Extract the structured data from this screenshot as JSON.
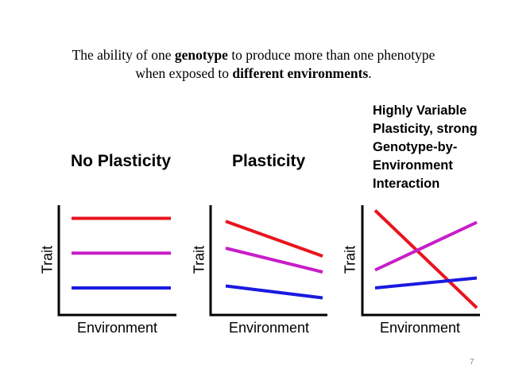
{
  "definition": {
    "line1_a": "The ability of one ",
    "line1_b": "genotype",
    "line1_c": " to produce more than one phenotype",
    "line2_a": "when exposed to ",
    "line2_b": "different environments",
    "line2_c": "."
  },
  "colors": {
    "red": "#e8141e",
    "magenta": "#c81ec8",
    "blue": "#1a1ae0",
    "axis": "#000000"
  },
  "chart_data": [
    {
      "type": "line",
      "title": "No Plasticity",
      "xlabel": "Environment",
      "ylabel": "Trait",
      "x": [
        0,
        1
      ],
      "series": [
        {
          "name": "red",
          "values": [
            0.9,
            0.9
          ]
        },
        {
          "name": "magenta",
          "values": [
            0.55,
            0.55
          ]
        },
        {
          "name": "blue",
          "values": [
            0.2,
            0.2
          ]
        }
      ]
    },
    {
      "type": "line",
      "title": "Plasticity",
      "xlabel": "Environment",
      "ylabel": "Trait",
      "x": [
        0,
        1
      ],
      "series": [
        {
          "name": "red",
          "values": [
            0.87,
            0.52
          ]
        },
        {
          "name": "magenta",
          "values": [
            0.6,
            0.36
          ]
        },
        {
          "name": "blue",
          "values": [
            0.22,
            0.1
          ]
        }
      ]
    },
    {
      "type": "line",
      "title_lines": [
        "Highly Variable",
        "Plasticity, strong",
        "Genotype-by-",
        "Environment",
        "Interaction"
      ],
      "xlabel": "Environment",
      "ylabel": "Trait",
      "x": [
        0,
        1
      ],
      "series": [
        {
          "name": "red",
          "values": [
            0.98,
            0.0
          ]
        },
        {
          "name": "magenta",
          "values": [
            0.38,
            0.86
          ]
        },
        {
          "name": "blue",
          "values": [
            0.2,
            0.3
          ]
        }
      ]
    }
  ],
  "page_number": "7"
}
